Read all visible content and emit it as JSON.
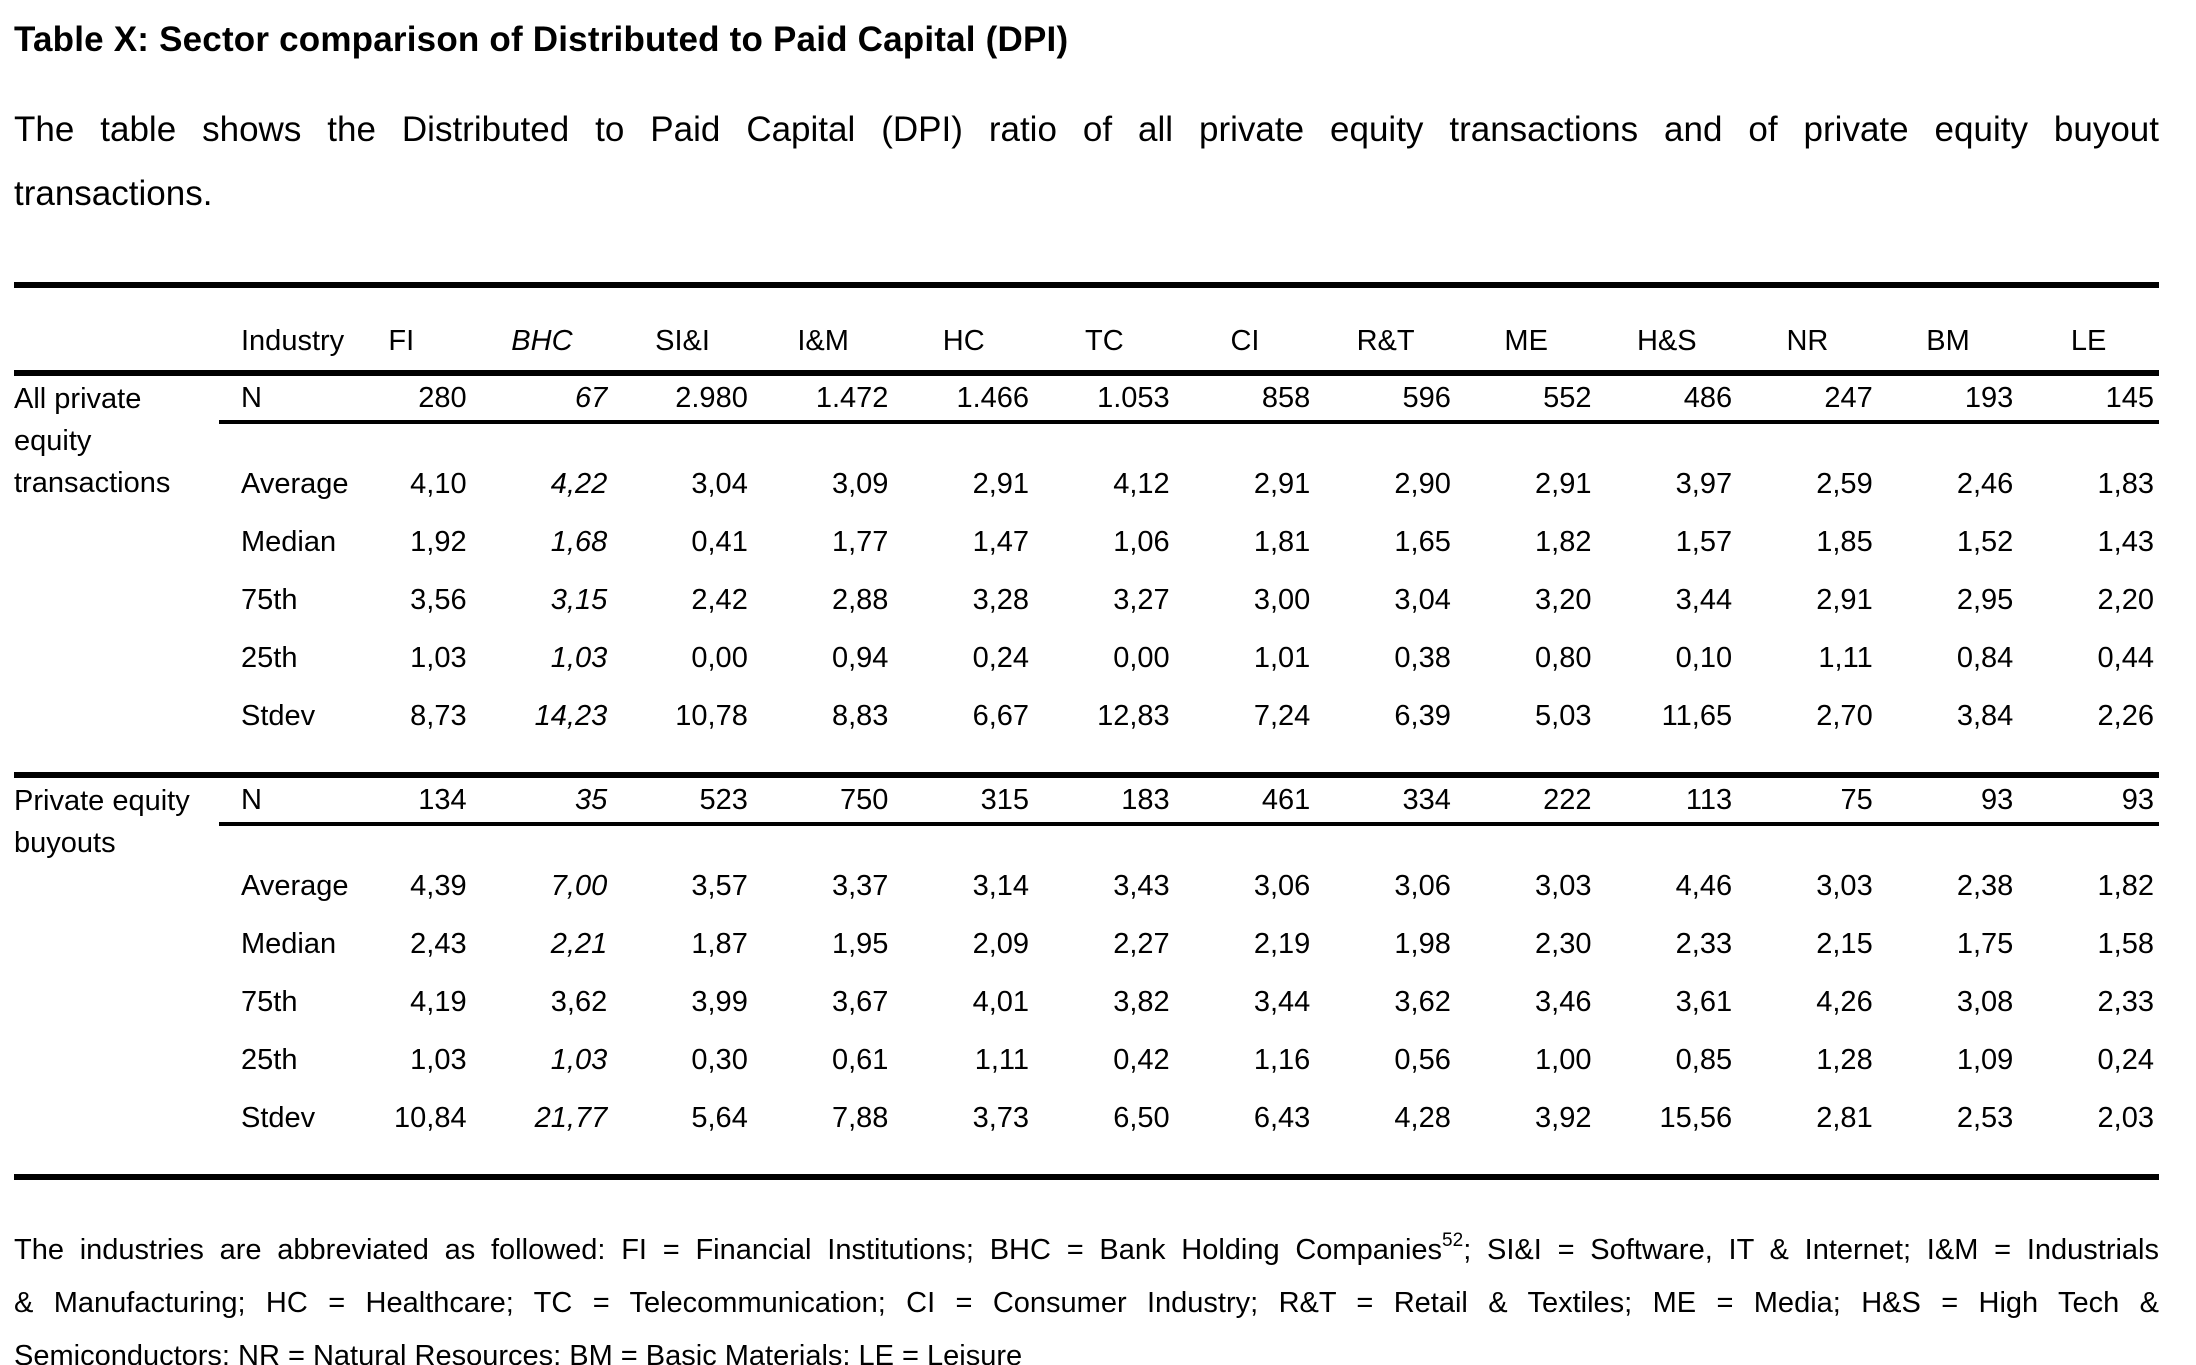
{
  "title": "Table X: Sector comparison of Distributed to Paid Capital (DPI)",
  "description_lines": [
    "The table shows the Distributed to Paid Capital (DPI) ratio of all private equity transactions and of private equity buyout",
    "transactions."
  ],
  "table": {
    "header": {
      "industry_label": "Industry",
      "columns": [
        {
          "label": "FI",
          "italic": false
        },
        {
          "label": "BHC",
          "italic": true
        },
        {
          "label": "SI&I",
          "italic": false
        },
        {
          "label": "I&M",
          "italic": false
        },
        {
          "label": "HC",
          "italic": false
        },
        {
          "label": "TC",
          "italic": false
        },
        {
          "label": "CI",
          "italic": false
        },
        {
          "label": "R&T",
          "italic": false
        },
        {
          "label": "ME",
          "italic": false
        },
        {
          "label": "H&S",
          "italic": false
        },
        {
          "label": "NR",
          "italic": false
        },
        {
          "label": "BM",
          "italic": false
        },
        {
          "label": "LE",
          "italic": false
        }
      ]
    },
    "sections": [
      {
        "group_label": "All private equity transactions",
        "rows": [
          {
            "label": "N",
            "bhc_italic": true,
            "underline": true,
            "values": [
              "280",
              "67",
              "2.980",
              "1.472",
              "1.466",
              "1.053",
              "858",
              "596",
              "552",
              "486",
              "247",
              "193",
              "145"
            ]
          },
          {
            "label": "Average",
            "bhc_italic": true,
            "underline": false,
            "values": [
              "4,10",
              "4,22",
              "3,04",
              "3,09",
              "2,91",
              "4,12",
              "2,91",
              "2,90",
              "2,91",
              "3,97",
              "2,59",
              "2,46",
              "1,83"
            ]
          },
          {
            "label": "Median",
            "bhc_italic": true,
            "underline": false,
            "values": [
              "1,92",
              "1,68",
              "0,41",
              "1,77",
              "1,47",
              "1,06",
              "1,81",
              "1,65",
              "1,82",
              "1,57",
              "1,85",
              "1,52",
              "1,43"
            ]
          },
          {
            "label": "75th",
            "bhc_italic": true,
            "underline": false,
            "values": [
              "3,56",
              "3,15",
              "2,42",
              "2,88",
              "3,28",
              "3,27",
              "3,00",
              "3,04",
              "3,20",
              "3,44",
              "2,91",
              "2,95",
              "2,20"
            ]
          },
          {
            "label": "25th",
            "bhc_italic": true,
            "underline": false,
            "values": [
              "1,03",
              "1,03",
              "0,00",
              "0,94",
              "0,24",
              "0,00",
              "1,01",
              "0,38",
              "0,80",
              "0,10",
              "1,11",
              "0,84",
              "0,44"
            ]
          },
          {
            "label": "Stdev",
            "bhc_italic": true,
            "underline": false,
            "values": [
              "8,73",
              "14,23",
              "10,78",
              "8,83",
              "6,67",
              "12,83",
              "7,24",
              "6,39",
              "5,03",
              "11,65",
              "2,70",
              "3,84",
              "2,26"
            ]
          }
        ]
      },
      {
        "group_label": "Private equity buyouts",
        "rows": [
          {
            "label": "N",
            "bhc_italic": true,
            "underline": true,
            "values": [
              "134",
              "35",
              "523",
              "750",
              "315",
              "183",
              "461",
              "334",
              "222",
              "113",
              "75",
              "93",
              "93"
            ]
          },
          {
            "label": "Average",
            "bhc_italic": true,
            "underline": false,
            "values": [
              "4,39",
              "7,00",
              "3,57",
              "3,37",
              "3,14",
              "3,43",
              "3,06",
              "3,06",
              "3,03",
              "4,46",
              "3,03",
              "2,38",
              "1,82"
            ]
          },
          {
            "label": "Median",
            "bhc_italic": true,
            "underline": false,
            "values": [
              "2,43",
              "2,21",
              "1,87",
              "1,95",
              "2,09",
              "2,27",
              "2,19",
              "1,98",
              "2,30",
              "2,33",
              "2,15",
              "1,75",
              "1,58"
            ]
          },
          {
            "label": "75th",
            "bhc_italic": false,
            "underline": false,
            "values": [
              "4,19",
              "3,62",
              "3,99",
              "3,67",
              "4,01",
              "3,82",
              "3,44",
              "3,62",
              "3,46",
              "3,61",
              "4,26",
              "3,08",
              "2,33"
            ]
          },
          {
            "label": "25th",
            "bhc_italic": true,
            "underline": false,
            "values": [
              "1,03",
              "1,03",
              "0,30",
              "0,61",
              "1,11",
              "0,42",
              "1,16",
              "0,56",
              "1,00",
              "0,85",
              "1,28",
              "1,09",
              "0,24"
            ]
          },
          {
            "label": "Stdev",
            "bhc_italic": true,
            "underline": false,
            "values": [
              "10,84",
              "21,77",
              "5,64",
              "7,88",
              "3,73",
              "6,50",
              "6,43",
              "4,28",
              "3,92",
              "15,56",
              "2,81",
              "2,53",
              "2,03"
            ]
          }
        ]
      }
    ]
  },
  "footnote": {
    "line1_pre": "The industries are abbreviated as followed:  FI = Financial Institutions; BHC = Bank Holding Companies",
    "line1_sup": "52",
    "line1_post": "; SI&I = Software, IT & Internet; I&M = Industrials",
    "line2": "& Manufacturing; HC = Healthcare; TC = Telecommunication; CI = Consumer Industry; R&T = Retail & Textiles; ME = Media; H&S = High Tech &",
    "line3": "Semiconductors; NR = Natural Resources; BM = Basic Materials; LE = Leisure"
  },
  "colors": {
    "text": "#000000",
    "background": "#ffffff",
    "rule": "#000000"
  }
}
